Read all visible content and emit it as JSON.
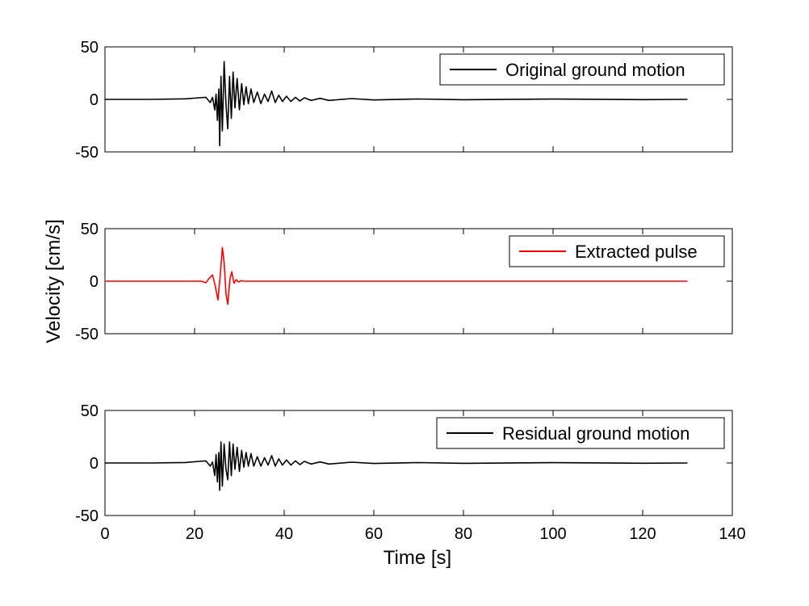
{
  "chart_data": [
    {
      "type": "line",
      "panel": "top",
      "xlim": [
        0,
        140
      ],
      "ylim": [
        -50,
        50
      ],
      "y_ticks": [
        -50,
        0,
        50
      ],
      "x_ticks": [
        0,
        20,
        40,
        60,
        80,
        100,
        120,
        140
      ],
      "show_x_tick_labels": false,
      "grid": false,
      "legend_position": "top-right",
      "series": [
        {
          "name": "Original ground motion",
          "color": "#000000",
          "x": [
            0,
            10,
            18,
            21,
            22.5,
            23.5,
            24.0,
            24.5,
            24.8,
            25.1,
            25.4,
            25.6,
            25.9,
            26.2,
            26.6,
            27.0,
            27.4,
            27.8,
            28.2,
            28.6,
            29.0,
            29.5,
            30.0,
            30.5,
            31.0,
            31.5,
            32.0,
            32.6,
            33.2,
            34.0,
            34.8,
            35.6,
            36.4,
            37.2,
            38.0,
            38.8,
            39.6,
            40.5,
            41.5,
            42.5,
            43.5,
            44.5,
            46,
            48,
            50,
            55,
            60,
            70,
            80,
            100,
            120,
            130
          ],
          "values": [
            0,
            0,
            0.5,
            1.5,
            2,
            -3,
            2,
            -10,
            5,
            -20,
            10,
            -44,
            22,
            -30,
            36,
            -5,
            -28,
            22,
            -18,
            26,
            -8,
            20,
            -10,
            15,
            -5,
            12,
            -4,
            10,
            -3,
            7,
            -4,
            5,
            -2,
            8,
            -3,
            4,
            -2,
            3,
            -2,
            2,
            -1.5,
            1.5,
            -1,
            1,
            -1,
            0.8,
            -0.5,
            0.4,
            -0.3,
            0.3,
            -0.2,
            0
          ]
        }
      ]
    },
    {
      "type": "line",
      "panel": "middle",
      "xlim": [
        0,
        140
      ],
      "ylim": [
        -50,
        50
      ],
      "y_ticks": [
        -50,
        0,
        50
      ],
      "x_ticks": [
        0,
        20,
        40,
        60,
        80,
        100,
        120,
        140
      ],
      "show_x_tick_labels": false,
      "grid": false,
      "legend_position": "top-right",
      "series": [
        {
          "name": "Extracted pulse",
          "color": "#ff0000",
          "x": [
            0,
            20,
            21.5,
            22.5,
            23.2,
            24.0,
            24.6,
            25.2,
            25.7,
            26.2,
            26.6,
            27.0,
            27.4,
            27.9,
            28.3,
            28.8,
            29.3,
            29.8,
            30.4,
            31,
            40,
            60,
            80,
            100,
            120,
            130
          ],
          "values": [
            0,
            0,
            0,
            -1.5,
            2.5,
            6,
            -4,
            -18,
            4,
            32,
            18,
            -12,
            -22,
            2,
            9,
            -2,
            1.5,
            -0.8,
            0.5,
            0,
            0,
            0,
            0,
            0,
            0,
            0
          ]
        }
      ]
    },
    {
      "type": "line",
      "panel": "bottom",
      "xlim": [
        0,
        140
      ],
      "ylim": [
        -50,
        50
      ],
      "y_ticks": [
        -50,
        0,
        50
      ],
      "x_ticks": [
        0,
        20,
        40,
        60,
        80,
        100,
        120,
        140
      ],
      "show_x_tick_labels": true,
      "grid": false,
      "legend_position": "top-right",
      "series": [
        {
          "name": "Residual ground motion",
          "color": "#000000",
          "x": [
            0,
            10,
            18,
            21,
            22.5,
            23.5,
            24.0,
            24.5,
            24.8,
            25.1,
            25.4,
            25.6,
            25.9,
            26.2,
            26.6,
            27.0,
            27.4,
            27.8,
            28.2,
            28.6,
            29.0,
            29.5,
            30.0,
            30.5,
            31.0,
            31.5,
            32.0,
            32.6,
            33.2,
            34.0,
            34.8,
            35.6,
            36.4,
            37.2,
            38.0,
            38.8,
            39.6,
            40.5,
            41.5,
            42.5,
            43.5,
            44.5,
            46,
            48,
            50,
            55,
            60,
            70,
            80,
            100,
            120,
            130
          ],
          "values": [
            0,
            0,
            0.5,
            1.5,
            2,
            -3,
            1,
            -12,
            8,
            -18,
            10,
            -26,
            20,
            -22,
            18,
            -6,
            -16,
            20,
            -12,
            18,
            -6,
            15,
            -8,
            12,
            -4,
            10,
            -3,
            9,
            -3,
            6,
            -3,
            5,
            -2,
            7,
            -3,
            4,
            -2,
            3,
            -2,
            2,
            -1.5,
            1.5,
            -1,
            1,
            -1,
            0.8,
            -0.5,
            0.4,
            -0.3,
            0.3,
            -0.2,
            0
          ]
        }
      ]
    }
  ],
  "axes": {
    "y_label": "Velocity [cm/s]",
    "x_label": "Time [s]"
  }
}
